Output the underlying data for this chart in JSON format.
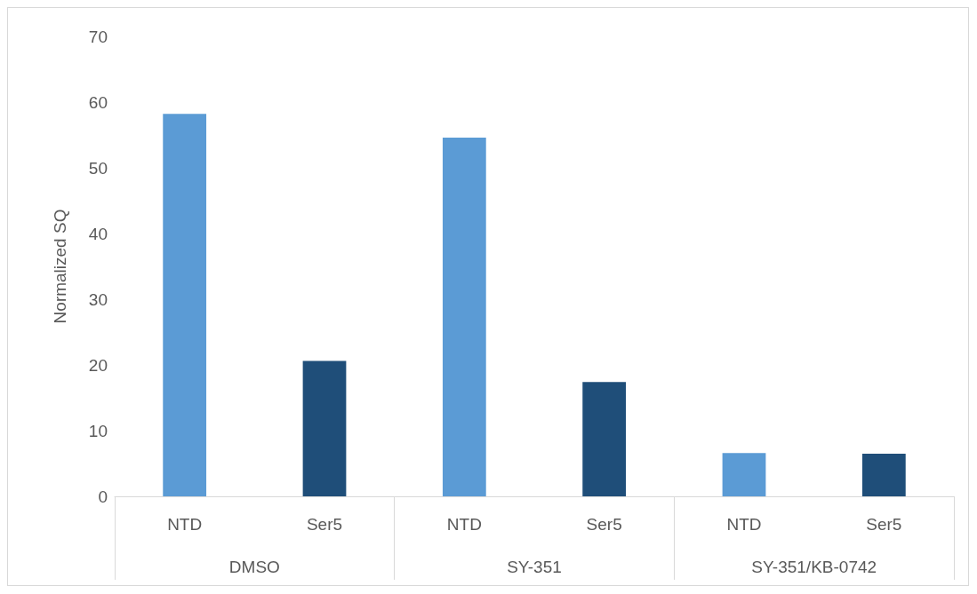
{
  "chart_data": {
    "type": "bar",
    "ylabel": "Normalized SQ",
    "categories": [
      "NTD",
      "Ser5",
      "NTD",
      "Ser5",
      "NTD",
      "Ser5"
    ],
    "values": [
      58.2,
      20.6,
      54.6,
      17.4,
      6.6,
      6.5
    ],
    "colors": [
      "#5b9bd5",
      "#1f4e79",
      "#5b9bd5",
      "#1f4e79",
      "#5b9bd5",
      "#1f4e79"
    ],
    "annotations": [
      "DMSO",
      "SY-351",
      "SY-351/KB-0742"
    ],
    "ylim": [
      0,
      70
    ],
    "yticks": [
      0,
      10,
      20,
      30,
      40,
      50,
      60,
      70
    ],
    "grid": false
  }
}
